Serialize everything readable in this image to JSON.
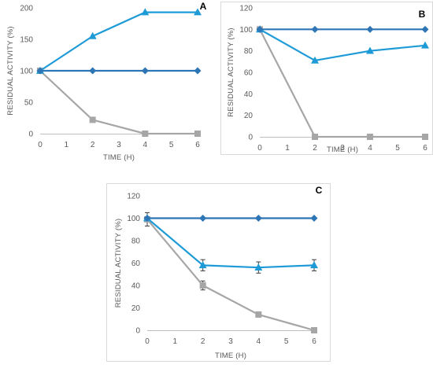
{
  "colors": {
    "diamond": "#2E75B6",
    "triangle": "#1E9BD7",
    "square": "#A6A6A6",
    "axis": "#BFBFBF",
    "text": "#595959",
    "error": "#404040",
    "frame": "#D9D9D9"
  },
  "chart_data": [
    {
      "type": "line",
      "panel": "A",
      "xlabel": "TIME (H)",
      "ylabel": "RESIDUAL  ACTIVITY (%)",
      "xlim": [
        0,
        6
      ],
      "ylim": [
        0,
        200
      ],
      "x_ticks": [
        "0",
        "1",
        "2",
        "3",
        "4",
        "5",
        "6"
      ],
      "y_ticks": [
        "0",
        "50",
        "100",
        "150",
        "200"
      ],
      "grid": false,
      "series": [
        {
          "marker": "diamond",
          "x": [
            0,
            2,
            4,
            6
          ],
          "y": [
            100,
            100,
            100,
            100
          ]
        },
        {
          "marker": "triangle",
          "x": [
            0,
            2,
            4,
            6
          ],
          "y": [
            100,
            155,
            193,
            193
          ]
        },
        {
          "marker": "square",
          "x": [
            0,
            2,
            4,
            6
          ],
          "y": [
            100,
            22,
            0,
            0
          ]
        }
      ]
    },
    {
      "type": "line",
      "panel": "B",
      "xlabel": "TIME (H)",
      "ylabel": "RESIDUAL  ACTIVITY  (%)",
      "xlim": [
        0,
        6
      ],
      "ylim": [
        0,
        120
      ],
      "x_ticks": [
        "0",
        "1",
        "2",
        "3",
        "4",
        "5",
        "6"
      ],
      "y_ticks": [
        "0",
        "20",
        "40",
        "60",
        "80",
        "100",
        "120"
      ],
      "grid": false,
      "series": [
        {
          "marker": "diamond",
          "x": [
            0,
            2,
            4,
            6
          ],
          "y": [
            100,
            100,
            100,
            100
          ]
        },
        {
          "marker": "triangle",
          "x": [
            0,
            2,
            4,
            6
          ],
          "y": [
            100,
            71,
            80,
            85
          ]
        },
        {
          "marker": "square",
          "x": [
            0,
            2,
            4,
            6
          ],
          "y": [
            100,
            0,
            0,
            0
          ]
        }
      ]
    },
    {
      "type": "line",
      "panel": "C",
      "xlabel": "TIME (H)",
      "ylabel": "RESIDUAL  ACTIVITY  (%)",
      "xlim": [
        0,
        6
      ],
      "ylim": [
        0,
        120
      ],
      "x_ticks": [
        "0",
        "1",
        "2",
        "3",
        "4",
        "5",
        "6"
      ],
      "y_ticks": [
        "0",
        "20",
        "40",
        "60",
        "80",
        "100",
        "120"
      ],
      "grid": false,
      "series": [
        {
          "marker": "diamond",
          "x": [
            0,
            2,
            4,
            6
          ],
          "y": [
            100,
            100,
            100,
            100
          ],
          "error": [
            0,
            0,
            0,
            0
          ]
        },
        {
          "marker": "triangle",
          "x": [
            0,
            2,
            4,
            6
          ],
          "y": [
            100,
            58,
            56,
            58
          ],
          "error": [
            0,
            5,
            5,
            5
          ]
        },
        {
          "marker": "square",
          "x": [
            0,
            2,
            4,
            6
          ],
          "y": [
            99,
            40,
            14,
            0
          ],
          "error": [
            6,
            4,
            0,
            0
          ]
        }
      ]
    }
  ]
}
